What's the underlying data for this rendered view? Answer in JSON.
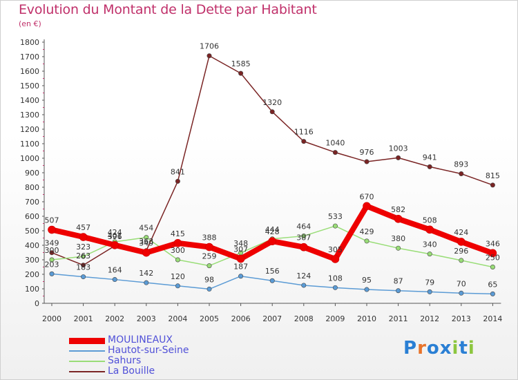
{
  "title": "Evolution du Montant de la Dette par Habitant",
  "subtitle": "(en €)",
  "logo": "Proxiti",
  "chart_data": {
    "type": "line",
    "x": [
      "2000",
      "2001",
      "2002",
      "2003",
      "2004",
      "2005",
      "2006",
      "2007",
      "2008",
      "2009",
      "2010",
      "2011",
      "2012",
      "2013",
      "2014"
    ],
    "ylim": [
      0,
      1800
    ],
    "yticks": [
      0,
      100,
      200,
      300,
      400,
      500,
      600,
      700,
      800,
      900,
      1000,
      1100,
      1200,
      1300,
      1400,
      1500,
      1600,
      1700,
      1800
    ],
    "legend_position": "bottom-left",
    "grid": false,
    "series": [
      {
        "name": "MOULINEAUX",
        "color": "#ee0000",
        "width": 8,
        "values": [
          507,
          457,
          401,
          349,
          415,
          388,
          307,
          428,
          387,
          305,
          670,
          582,
          508,
          424,
          346
        ],
        "labels": [
          "507",
          "457",
          "401",
          "349",
          "415",
          "388",
          "307",
          "428",
          "387",
          "305",
          "670",
          "582",
          "508",
          "424",
          "346"
        ]
      },
      {
        "name": "Hautot-sur-Seine",
        "color": "#5b9bd5",
        "width": 1.5,
        "values": [
          203,
          183,
          164,
          142,
          120,
          98,
          187,
          156,
          124,
          108,
          95,
          87,
          79,
          70,
          65
        ],
        "labels": [
          "203",
          "183",
          "164",
          "142",
          "120",
          "98",
          "187",
          "156",
          "124",
          "108",
          "95",
          "87",
          "79",
          "70",
          "65"
        ]
      },
      {
        "name": "Sahurs",
        "color": "#99dd77",
        "width": 1.5,
        "values": [
          300,
          323,
          424,
          454,
          300,
          259,
          348,
          444,
          464,
          533,
          429,
          380,
          340,
          296,
          250
        ],
        "labels": [
          "300",
          "323",
          "424",
          "454",
          "300",
          "259",
          "348",
          "444",
          "464",
          "533",
          "429",
          "380",
          "340",
          "296",
          "250"
        ]
      },
      {
        "name": "La Bouille",
        "color": "#7a2424",
        "width": 1.5,
        "values": [
          349,
          263,
          396,
          363,
          841,
          1706,
          1585,
          1320,
          1116,
          1040,
          976,
          1003,
          941,
          893,
          815
        ],
        "labels": [
          "349",
          "263",
          "396",
          "363",
          "841",
          "1706",
          "1585",
          "1320",
          "1116",
          "1040",
          "976",
          "1003",
          "941",
          "893",
          "815"
        ]
      }
    ]
  }
}
